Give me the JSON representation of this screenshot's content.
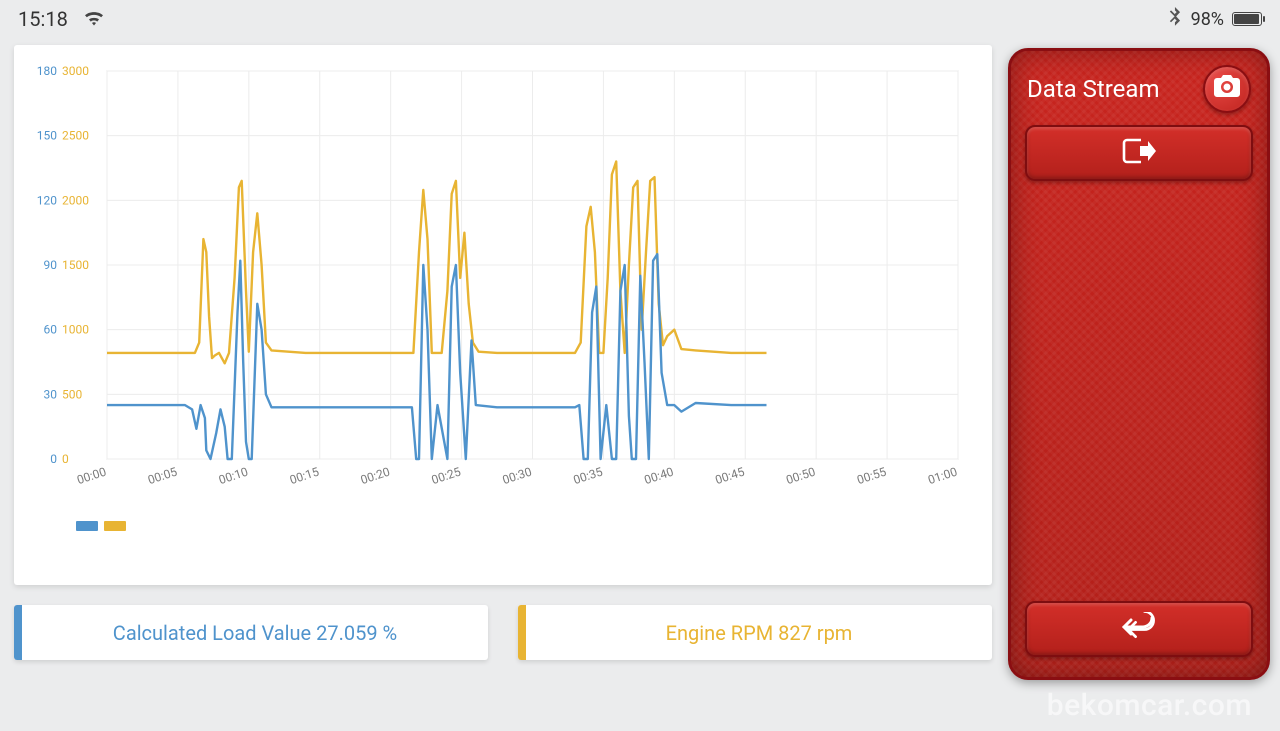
{
  "status": {
    "time": "15:18",
    "battery_pct": "98%",
    "battery_level": 0.98
  },
  "chart": {
    "type": "line",
    "background_color": "#ffffff",
    "grid_color": "#ececec",
    "axis_color": "#dcdcdc",
    "tick_font_size": 12,
    "tick_color_x": "#7a7a7a",
    "line_width": 2.4,
    "x": {
      "min": 0,
      "max": 60,
      "tick_step": 5,
      "labels": [
        "00:00",
        "00:05",
        "00:10",
        "00:15",
        "00:20",
        "00:25",
        "00:30",
        "00:35",
        "00:40",
        "00:45",
        "00:50",
        "00:55",
        "01:00"
      ],
      "label_rotate_deg": -18
    },
    "series": [
      {
        "name": "Calculated Load Value",
        "color": "#4f93cc",
        "axis": "left",
        "y_min": 0,
        "y_max": 180,
        "y_ticks": [
          0,
          30,
          60,
          90,
          120,
          150,
          180
        ],
        "points": [
          [
            0.0,
            25
          ],
          [
            4.0,
            25
          ],
          [
            5.5,
            25
          ],
          [
            6.0,
            23
          ],
          [
            6.3,
            14
          ],
          [
            6.6,
            25
          ],
          [
            6.9,
            19
          ],
          [
            7.0,
            4
          ],
          [
            7.3,
            0
          ],
          [
            7.7,
            12
          ],
          [
            8.0,
            23
          ],
          [
            8.3,
            15
          ],
          [
            8.5,
            0
          ],
          [
            8.8,
            0
          ],
          [
            9.2,
            68
          ],
          [
            9.4,
            92
          ],
          [
            9.6,
            45
          ],
          [
            9.8,
            8
          ],
          [
            10.0,
            0
          ],
          [
            10.2,
            0
          ],
          [
            10.6,
            72
          ],
          [
            10.9,
            60
          ],
          [
            11.2,
            30
          ],
          [
            11.6,
            24
          ],
          [
            14,
            24
          ],
          [
            18,
            24
          ],
          [
            21.5,
            24
          ],
          [
            21.8,
            0
          ],
          [
            22.0,
            0
          ],
          [
            22.3,
            90
          ],
          [
            22.6,
            60
          ],
          [
            22.9,
            0
          ],
          [
            23.3,
            25
          ],
          [
            24.0,
            0
          ],
          [
            24.3,
            80
          ],
          [
            24.6,
            90
          ],
          [
            24.9,
            40
          ],
          [
            25.3,
            0
          ],
          [
            25.7,
            55
          ],
          [
            26.0,
            25
          ],
          [
            27.5,
            24
          ],
          [
            31,
            24
          ],
          [
            33.0,
            24
          ],
          [
            33.3,
            25
          ],
          [
            33.6,
            0
          ],
          [
            33.9,
            0
          ],
          [
            34.2,
            68
          ],
          [
            34.5,
            80
          ],
          [
            34.8,
            0
          ],
          [
            35.2,
            25
          ],
          [
            35.6,
            0
          ],
          [
            35.9,
            0
          ],
          [
            36.2,
            78
          ],
          [
            36.5,
            90
          ],
          [
            36.8,
            20
          ],
          [
            37.0,
            0
          ],
          [
            37.3,
            0
          ],
          [
            37.6,
            85
          ],
          [
            37.9,
            45
          ],
          [
            38.2,
            0
          ],
          [
            38.5,
            92
          ],
          [
            38.8,
            95
          ],
          [
            39.1,
            40
          ],
          [
            39.5,
            25
          ],
          [
            40.0,
            25
          ],
          [
            40.5,
            22
          ],
          [
            41.5,
            26
          ],
          [
            44,
            25
          ],
          [
            46.5,
            25
          ]
        ]
      },
      {
        "name": "Engine RPM",
        "color": "#e8b433",
        "axis": "right",
        "y_min": 0,
        "y_max": 3000,
        "y_ticks": [
          0,
          500,
          1000,
          1500,
          2000,
          2500,
          3000
        ],
        "points": [
          [
            0.0,
            820
          ],
          [
            4.5,
            820
          ],
          [
            5.5,
            820
          ],
          [
            6.2,
            820
          ],
          [
            6.5,
            900
          ],
          [
            6.8,
            1700
          ],
          [
            7.0,
            1600
          ],
          [
            7.2,
            1100
          ],
          [
            7.4,
            780
          ],
          [
            7.6,
            800
          ],
          [
            7.9,
            820
          ],
          [
            8.3,
            740
          ],
          [
            8.6,
            820
          ],
          [
            9.0,
            1400
          ],
          [
            9.3,
            2100
          ],
          [
            9.5,
            2150
          ],
          [
            9.8,
            1300
          ],
          [
            10.0,
            830
          ],
          [
            10.3,
            1600
          ],
          [
            10.6,
            1900
          ],
          [
            10.9,
            1500
          ],
          [
            11.2,
            900
          ],
          [
            11.6,
            840
          ],
          [
            14,
            820
          ],
          [
            18,
            820
          ],
          [
            21.3,
            820
          ],
          [
            21.6,
            820
          ],
          [
            22.0,
            1600
          ],
          [
            22.3,
            2080
          ],
          [
            22.6,
            1700
          ],
          [
            22.9,
            820
          ],
          [
            23.2,
            820
          ],
          [
            23.6,
            820
          ],
          [
            24.0,
            1300
          ],
          [
            24.3,
            2050
          ],
          [
            24.6,
            2150
          ],
          [
            24.9,
            1400
          ],
          [
            25.2,
            1750
          ],
          [
            25.5,
            1200
          ],
          [
            25.8,
            900
          ],
          [
            26.2,
            830
          ],
          [
            27.5,
            820
          ],
          [
            31,
            820
          ],
          [
            33.0,
            820
          ],
          [
            33.4,
            900
          ],
          [
            33.8,
            1800
          ],
          [
            34.1,
            1950
          ],
          [
            34.4,
            1600
          ],
          [
            34.7,
            820
          ],
          [
            35.0,
            820
          ],
          [
            35.3,
            1400
          ],
          [
            35.6,
            2200
          ],
          [
            35.9,
            2300
          ],
          [
            36.2,
            1300
          ],
          [
            36.5,
            820
          ],
          [
            36.8,
            1500
          ],
          [
            37.1,
            2100
          ],
          [
            37.4,
            2150
          ],
          [
            37.7,
            1000
          ],
          [
            38.0,
            1600
          ],
          [
            38.3,
            2150
          ],
          [
            38.6,
            2180
          ],
          [
            38.9,
            1200
          ],
          [
            39.2,
            880
          ],
          [
            39.5,
            950
          ],
          [
            40.0,
            1000
          ],
          [
            40.5,
            850
          ],
          [
            41.5,
            840
          ],
          [
            44,
            820
          ],
          [
            46.5,
            820
          ]
        ]
      }
    ]
  },
  "value_cards": {
    "load": {
      "label": "Calculated Load Value 27.059 %",
      "color": "#4f93cc"
    },
    "rpm": {
      "label": "Engine RPM 827 rpm",
      "color": "#e8b433"
    }
  },
  "side_panel": {
    "title": "Data Stream",
    "bg_from": "#c8241e",
    "bg_to": "#b2201a",
    "border": "#8a0e12"
  },
  "watermark": "bekomcar.com"
}
